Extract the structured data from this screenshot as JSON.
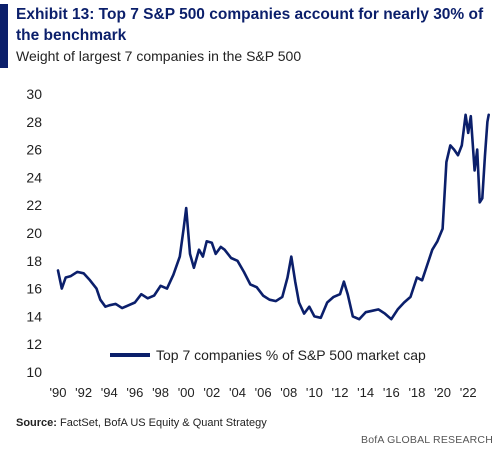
{
  "header": {
    "title": "Exhibit 13: Top 7 S&P 500 companies account for nearly 30% of the benchmark",
    "subtitle": "Weight of largest 7 companies in the S&P 500"
  },
  "footer": {
    "source_label": "Source:",
    "source_text": "FactSet, BofA US Equity & Quant Strategy",
    "brand": "BofA GLOBAL RESEARCH"
  },
  "colors": {
    "line": "#0b1f6b",
    "title": "#0b1f6b"
  },
  "chart_data": {
    "type": "line",
    "title": "Exhibit 13: Top 7 S&P 500 companies account for nearly 30% of the benchmark",
    "subtitle": "Weight of largest 7 companies in the S&P 500",
    "xlabel": "",
    "ylabel": "",
    "ylim": [
      10,
      30
    ],
    "xlim": [
      1990,
      2023.7
    ],
    "y_ticks": [
      10,
      12,
      14,
      16,
      18,
      20,
      22,
      24,
      26,
      28,
      30
    ],
    "x_ticks": [
      {
        "value": 1990,
        "label": "'90"
      },
      {
        "value": 1992,
        "label": "'92"
      },
      {
        "value": 1994,
        "label": "'94"
      },
      {
        "value": 1996,
        "label": "'96"
      },
      {
        "value": 1998,
        "label": "'98"
      },
      {
        "value": 2000,
        "label": "'00"
      },
      {
        "value": 2002,
        "label": "'02"
      },
      {
        "value": 2004,
        "label": "'04"
      },
      {
        "value": 2006,
        "label": "'06"
      },
      {
        "value": 2008,
        "label": "'08"
      },
      {
        "value": 2010,
        "label": "'10"
      },
      {
        "value": 2012,
        "label": "'12"
      },
      {
        "value": 2014,
        "label": "'14"
      },
      {
        "value": 2016,
        "label": "'16"
      },
      {
        "value": 2018,
        "label": "'18"
      },
      {
        "value": 2020,
        "label": "'20"
      },
      {
        "value": 2022,
        "label": "'22"
      }
    ],
    "grid": false,
    "legend_position": "bottom-center",
    "series": [
      {
        "name": "Top 7 companies % of S&P 500 market cap",
        "x": [
          1990.0,
          1990.3,
          1990.6,
          1991.0,
          1991.5,
          1992.0,
          1992.5,
          1993.0,
          1993.3,
          1993.7,
          1994.0,
          1994.5,
          1995.0,
          1995.5,
          1996.0,
          1996.5,
          1997.0,
          1997.5,
          1998.0,
          1998.5,
          1999.0,
          1999.5,
          1999.8,
          2000.0,
          2000.3,
          2000.6,
          2001.0,
          2001.3,
          2001.6,
          2002.0,
          2002.3,
          2002.7,
          2003.0,
          2003.5,
          2004.0,
          2004.5,
          2005.0,
          2005.5,
          2006.0,
          2006.5,
          2007.0,
          2007.5,
          2007.9,
          2008.2,
          2008.5,
          2008.8,
          2009.2,
          2009.6,
          2010.0,
          2010.5,
          2011.0,
          2011.5,
          2012.0,
          2012.3,
          2012.6,
          2013.0,
          2013.5,
          2014.0,
          2014.5,
          2015.0,
          2015.5,
          2016.0,
          2016.5,
          2017.0,
          2017.5,
          2018.0,
          2018.4,
          2018.8,
          2019.2,
          2019.6,
          2020.0,
          2020.3,
          2020.6,
          2020.9,
          2021.2,
          2021.5,
          2021.8,
          2022.0,
          2022.2,
          2022.5,
          2022.7,
          2022.9,
          2023.1,
          2023.3,
          2023.5,
          2023.6
        ],
        "values": [
          17.3,
          16.0,
          16.8,
          16.9,
          17.2,
          17.1,
          16.6,
          16.0,
          15.2,
          14.7,
          14.8,
          14.9,
          14.6,
          14.8,
          15.0,
          15.6,
          15.3,
          15.5,
          16.2,
          16.0,
          17.0,
          18.3,
          20.3,
          21.8,
          18.5,
          17.5,
          18.8,
          18.3,
          19.4,
          19.3,
          18.5,
          19.0,
          18.8,
          18.2,
          18.0,
          17.2,
          16.3,
          16.1,
          15.5,
          15.2,
          15.1,
          15.4,
          16.8,
          18.3,
          16.5,
          15.0,
          14.2,
          14.7,
          14.0,
          13.9,
          15.0,
          15.4,
          15.6,
          16.5,
          15.6,
          14.0,
          13.8,
          14.3,
          14.4,
          14.5,
          14.2,
          13.8,
          14.5,
          15.0,
          15.4,
          16.8,
          16.6,
          17.7,
          18.8,
          19.4,
          20.3,
          25.1,
          26.3,
          26.0,
          25.6,
          26.3,
          28.5,
          27.2,
          28.4,
          24.5,
          26.0,
          22.2,
          22.5,
          25.5,
          28.0,
          28.5
        ]
      }
    ]
  }
}
